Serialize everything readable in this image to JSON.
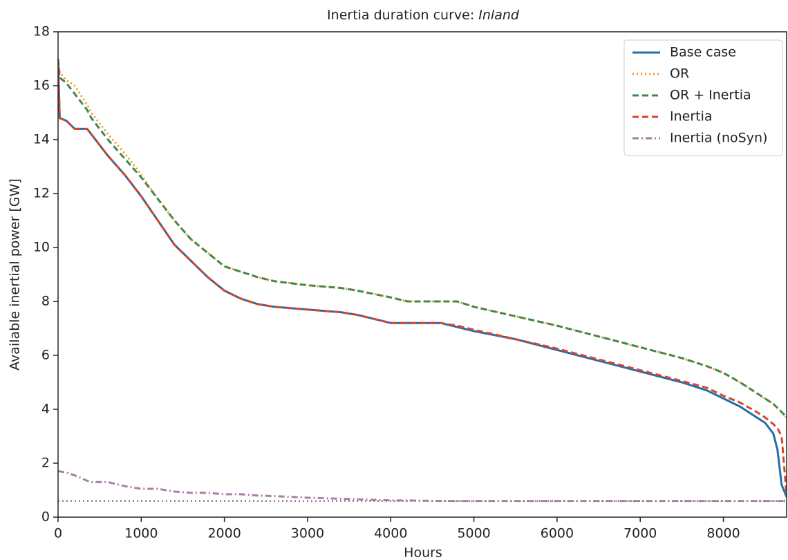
{
  "chart_data": {
    "type": "line",
    "title": "Inertia duration curve:",
    "title_italic": "Inland",
    "xlabel": "Hours",
    "ylabel": "Available inertial power [GW]",
    "xlim": [
      0,
      8760
    ],
    "ylim": [
      0,
      18
    ],
    "xticks": [
      0,
      1000,
      2000,
      3000,
      4000,
      5000,
      6000,
      7000,
      8000
    ],
    "yticks": [
      0,
      2,
      4,
      6,
      8,
      10,
      12,
      14,
      16,
      18
    ],
    "grid": false,
    "legend": "upper right",
    "x": [
      0,
      20,
      100,
      200,
      350,
      400,
      600,
      800,
      1000,
      1200,
      1400,
      1600,
      1800,
      2000,
      2200,
      2400,
      2600,
      3000,
      3400,
      3600,
      4000,
      4200,
      4600,
      4800,
      5000,
      5500,
      6000,
      6500,
      7000,
      7500,
      7800,
      8000,
      8200,
      8400,
      8500,
      8600,
      8650,
      8700,
      8760
    ],
    "series": [
      {
        "name": "Base case",
        "color": "#1f6fa8",
        "style": "solid",
        "values": [
          17,
          14.8,
          14.7,
          14.4,
          14.4,
          14.2,
          13.4,
          12.7,
          11.9,
          11.0,
          10.1,
          9.5,
          8.9,
          8.4,
          8.1,
          7.9,
          7.8,
          7.7,
          7.6,
          7.5,
          7.2,
          7.2,
          7.2,
          7.05,
          6.9,
          6.6,
          6.2,
          5.8,
          5.4,
          5.0,
          4.7,
          4.4,
          4.1,
          3.7,
          3.5,
          3.1,
          2.5,
          1.2,
          0.75
        ]
      },
      {
        "name": "OR",
        "color": "#ff8c1a",
        "style": "dotted",
        "values": [
          17.0,
          16.5,
          16.2,
          16.0,
          15.3,
          15.0,
          14.2,
          13.5,
          12.7,
          11.8,
          11.0,
          10.3,
          9.8,
          9.3,
          9.1,
          8.9,
          8.75,
          8.6,
          8.5,
          8.4,
          8.15,
          8.0,
          8.0,
          8.0,
          7.8,
          7.45,
          7.1,
          6.7,
          6.3,
          5.9,
          5.6,
          5.35,
          5.0,
          4.6,
          4.4,
          4.2,
          4.05,
          3.9,
          3.7
        ]
      },
      {
        "name": "OR + Inertia",
        "color": "#3d8a4f",
        "style": "dashed",
        "values": [
          17.0,
          16.3,
          16.1,
          15.7,
          15.1,
          14.8,
          14.0,
          13.3,
          12.6,
          11.8,
          11.0,
          10.3,
          9.8,
          9.3,
          9.1,
          8.9,
          8.75,
          8.6,
          8.5,
          8.4,
          8.15,
          8.0,
          8.0,
          8.0,
          7.8,
          7.45,
          7.1,
          6.7,
          6.3,
          5.9,
          5.6,
          5.35,
          5.0,
          4.6,
          4.4,
          4.2,
          4.05,
          3.9,
          3.7
        ]
      },
      {
        "name": "Inertia",
        "color": "#d9452b",
        "style": "dashed",
        "values": [
          17,
          14.8,
          14.7,
          14.4,
          14.4,
          14.2,
          13.4,
          12.7,
          11.9,
          11.0,
          10.1,
          9.5,
          8.9,
          8.4,
          8.1,
          7.9,
          7.8,
          7.7,
          7.6,
          7.5,
          7.2,
          7.2,
          7.2,
          7.1,
          6.95,
          6.6,
          6.25,
          5.85,
          5.45,
          5.05,
          4.8,
          4.5,
          4.25,
          3.9,
          3.7,
          3.45,
          3.3,
          3.0,
          0.8
        ]
      },
      {
        "name": "Inertia (noSyn)",
        "color": "#a77ea6",
        "style": "dashdot",
        "values": [
          1.7,
          1.7,
          1.65,
          1.55,
          1.35,
          1.3,
          1.3,
          1.15,
          1.05,
          1.05,
          0.95,
          0.9,
          0.9,
          0.85,
          0.85,
          0.8,
          0.78,
          0.72,
          0.68,
          0.66,
          0.62,
          0.62,
          0.6,
          0.6,
          0.6,
          0.6,
          0.6,
          0.6,
          0.6,
          0.6,
          0.6,
          0.6,
          0.6,
          0.6,
          0.6,
          0.6,
          0.6,
          0.6,
          0.6
        ]
      }
    ],
    "reference_lines": [
      {
        "value": 0.6,
        "color": "#808080",
        "style": "dotted"
      }
    ]
  }
}
